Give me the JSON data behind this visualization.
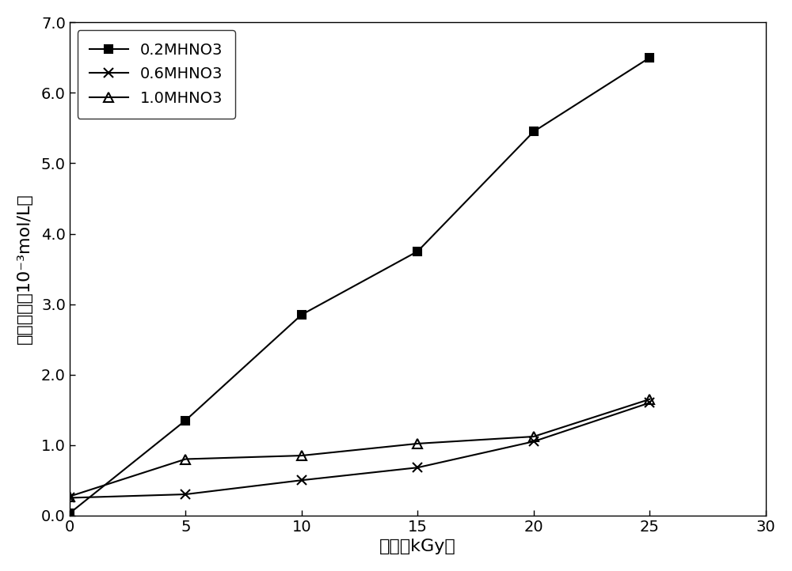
{
  "series": [
    {
      "label": "0.2MHNO3",
      "x": [
        0,
        5,
        10,
        15,
        20,
        25
      ],
      "y": [
        0.03,
        1.35,
        2.85,
        3.75,
        5.45,
        6.5
      ],
      "marker": "s",
      "color": "#000000",
      "markersize": 7,
      "fillstyle": "full"
    },
    {
      "label": "0.6MHNO3",
      "x": [
        0,
        5,
        10,
        15,
        20,
        25
      ],
      "y": [
        0.25,
        0.3,
        0.5,
        0.68,
        1.05,
        1.6
      ],
      "marker": "x",
      "color": "#000000",
      "markersize": 8,
      "fillstyle": "full"
    },
    {
      "label": "1.0MHNO3",
      "x": [
        0,
        5,
        10,
        15,
        20,
        25
      ],
      "y": [
        0.27,
        0.8,
        0.85,
        1.02,
        1.12,
        1.65
      ],
      "marker": "^",
      "color": "#000000",
      "markersize": 8,
      "fillstyle": "none"
    }
  ],
  "xlabel_cn": "剂量",
  "xlabel_en": "kGy",
  "ylabel_cn": "羟胺浓度",
  "ylabel_unit": "10⁻³mol/L",
  "xlim": [
    0,
    30
  ],
  "ylim": [
    0,
    7.0
  ],
  "xticks": [
    0,
    5,
    10,
    15,
    20,
    25,
    30
  ],
  "yticks": [
    0.0,
    1.0,
    2.0,
    3.0,
    4.0,
    5.0,
    6.0,
    7.0
  ],
  "ytick_labels": [
    "0.0",
    "1.0",
    "2.0",
    "3.0",
    "4.0",
    "5.0",
    "6.0",
    "7.0"
  ],
  "legend_loc": "upper left",
  "background_color": "#ffffff",
  "linewidth": 1.5
}
